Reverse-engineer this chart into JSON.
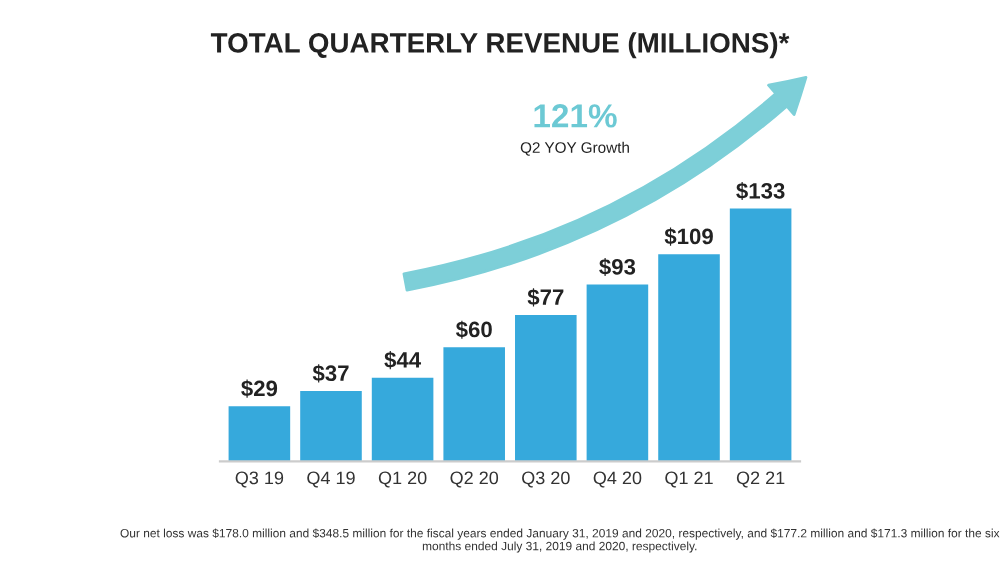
{
  "chart_data": {
    "type": "bar",
    "title": "TOTAL QUARTERLY REVENUE (MILLIONS)*",
    "categories": [
      "Q3 19",
      "Q4 19",
      "Q1 20",
      "Q2 20",
      "Q3 20",
      "Q4 20",
      "Q1 21",
      "Q2 21"
    ],
    "values": [
      29,
      37,
      44,
      60,
      77,
      93,
      109,
      133
    ],
    "value_labels": [
      "$29",
      "$37",
      "$44",
      "$60",
      "$77",
      "$93",
      "$109",
      "$133"
    ],
    "color": "#36a9dc",
    "annotations": [
      "121%",
      "Q2 YOY Growth",
      "Our net loss was $178.0 million and $348.5 million for the fiscal years ended January 31, 2019 and 2020, respectively, and $177.2 million and $171.3 million for the six months ended July 31, 2019 and 2020, respectively."
    ]
  }
}
